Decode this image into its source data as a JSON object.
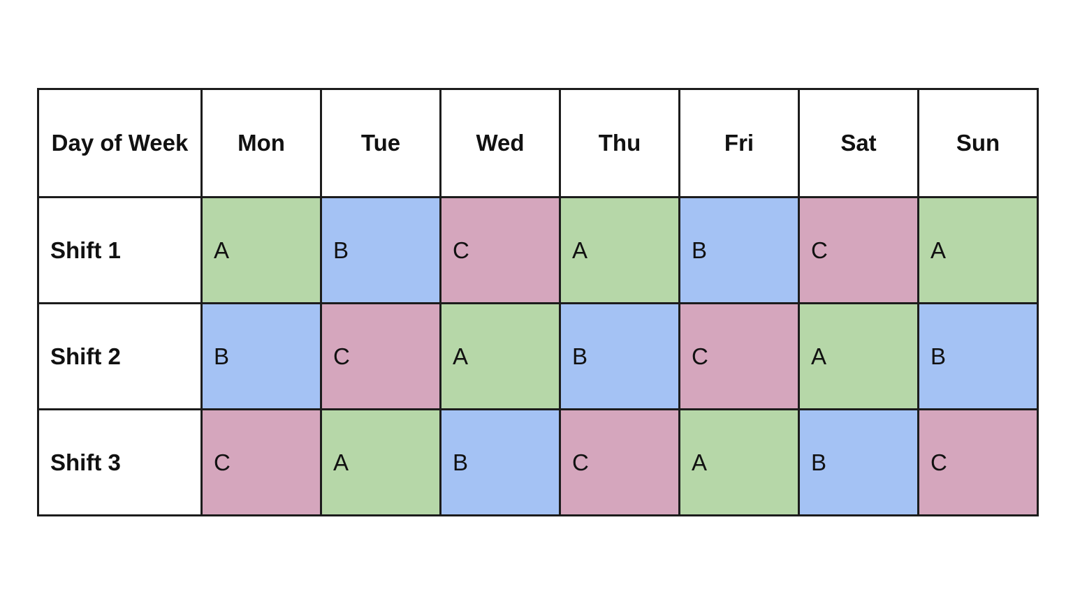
{
  "table": {
    "header": [
      "Day of Week",
      "Mon",
      "Tue",
      "Wed",
      "Thu",
      "Fri",
      "Sat",
      "Sun"
    ],
    "rows": [
      {
        "label": "Shift 1",
        "cells": [
          {
            "team": "A"
          },
          {
            "team": "B"
          },
          {
            "team": "C"
          },
          {
            "team": "A"
          },
          {
            "team": "B"
          },
          {
            "team": "C"
          },
          {
            "team": "A"
          }
        ]
      },
      {
        "label": "Shift 2",
        "cells": [
          {
            "team": "B"
          },
          {
            "team": "C"
          },
          {
            "team": "A"
          },
          {
            "team": "B"
          },
          {
            "team": "C"
          },
          {
            "team": "A"
          },
          {
            "team": "B"
          }
        ]
      },
      {
        "label": "Shift 3",
        "cells": [
          {
            "team": "C"
          },
          {
            "team": "A"
          },
          {
            "team": "B"
          },
          {
            "team": "C"
          },
          {
            "team": "A"
          },
          {
            "team": "B"
          },
          {
            "team": "C"
          }
        ]
      }
    ]
  },
  "colors": {
    "team_A": "#b6d7a8",
    "team_B": "#a4c2f4",
    "team_C": "#d5a6bd",
    "border": "#1c1c1c",
    "background": "#ffffff"
  }
}
